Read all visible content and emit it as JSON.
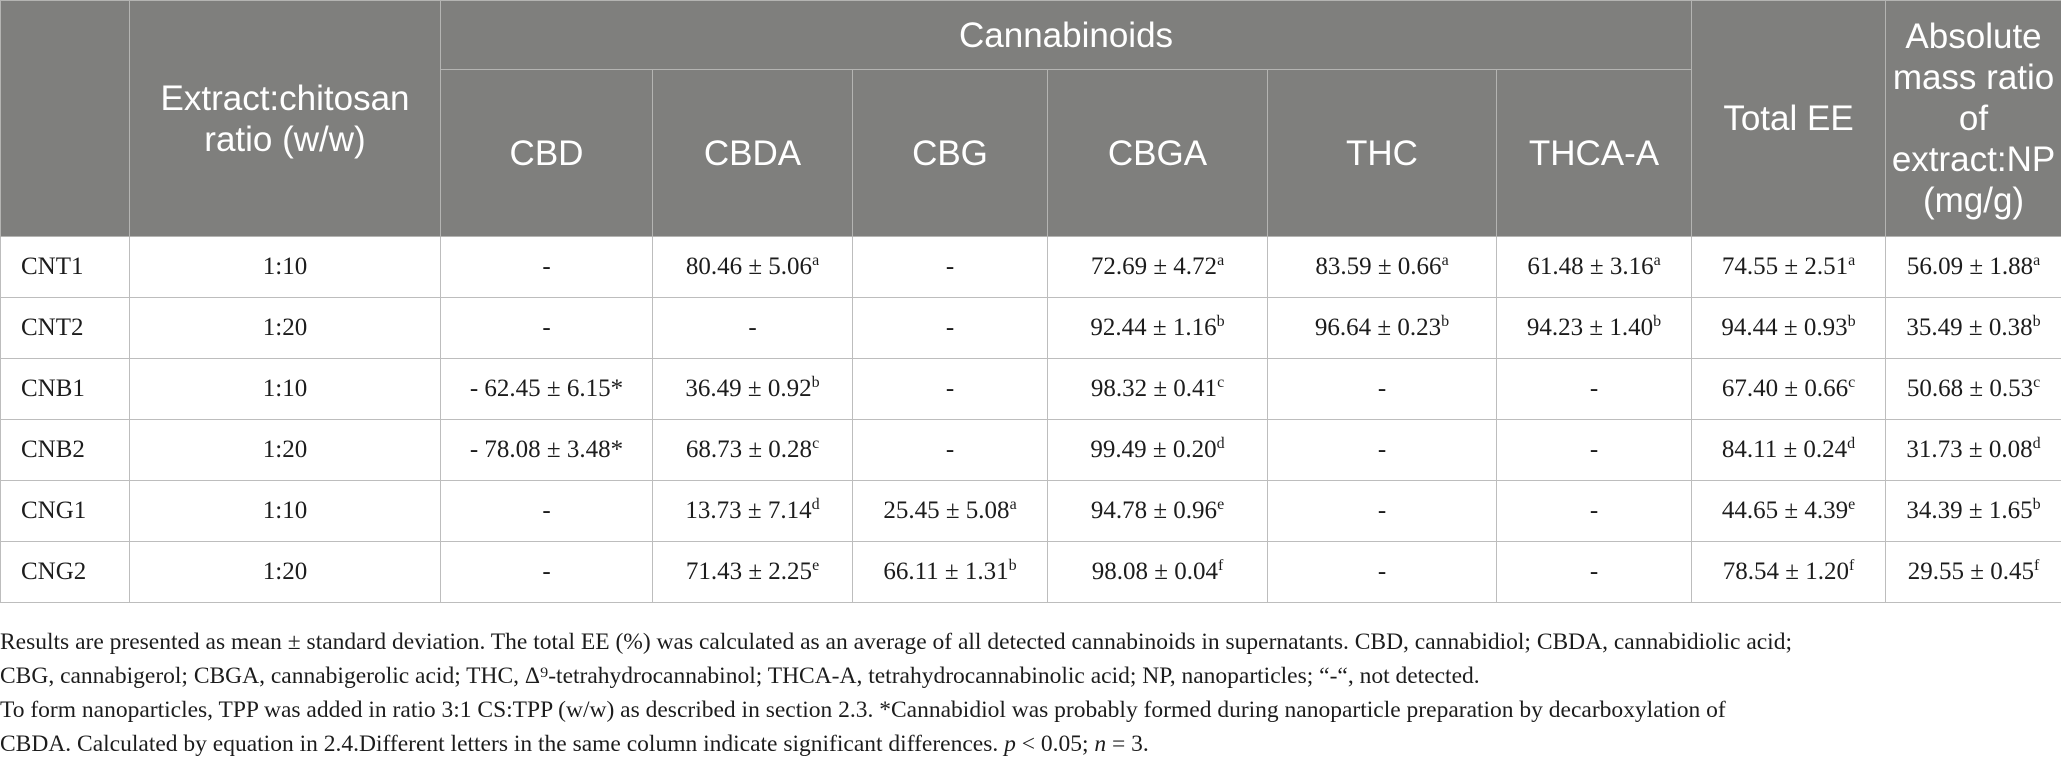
{
  "table": {
    "group_header": "Cannabinoids",
    "headers": {
      "blank": "",
      "ratio": "Extract:chitosan ratio (w/w)",
      "cannabinoids": [
        "CBD",
        "CBDA",
        "CBG",
        "CBGA",
        "THC",
        "THCA-A"
      ],
      "total": "Total EE",
      "absolute": "Absolute mass ratio of extract:NP (mg/g)"
    },
    "rows": [
      {
        "name": "CNT1",
        "ratio": "1:10",
        "cells": [
          {
            "v": "-",
            "s": ""
          },
          {
            "v": "80.46 ± 5.06",
            "s": "a"
          },
          {
            "v": "-",
            "s": ""
          },
          {
            "v": "72.69 ± 4.72",
            "s": "a"
          },
          {
            "v": "83.59 ± 0.66",
            "s": "a"
          },
          {
            "v": "61.48 ± 3.16",
            "s": "a"
          },
          {
            "v": "74.55 ± 2.51",
            "s": "a"
          },
          {
            "v": "56.09 ± 1.88",
            "s": "a"
          }
        ]
      },
      {
        "name": "CNT2",
        "ratio": "1:20",
        "cells": [
          {
            "v": "-",
            "s": ""
          },
          {
            "v": "-",
            "s": ""
          },
          {
            "v": "-",
            "s": ""
          },
          {
            "v": "92.44 ± 1.16",
            "s": "b"
          },
          {
            "v": "96.64 ± 0.23",
            "s": "b"
          },
          {
            "v": "94.23 ± 1.40",
            "s": "b"
          },
          {
            "v": "94.44 ± 0.93",
            "s": "b"
          },
          {
            "v": "35.49 ± 0.38",
            "s": "b"
          }
        ]
      },
      {
        "name": "CNB1",
        "ratio": "1:10",
        "cells": [
          {
            "v": "- 62.45 ± 6.15*",
            "s": ""
          },
          {
            "v": "36.49 ± 0.92",
            "s": "b"
          },
          {
            "v": "-",
            "s": ""
          },
          {
            "v": "98.32 ± 0.41",
            "s": "c"
          },
          {
            "v": "-",
            "s": ""
          },
          {
            "v": "-",
            "s": ""
          },
          {
            "v": "67.40 ± 0.66",
            "s": "c"
          },
          {
            "v": "50.68 ± 0.53",
            "s": "c"
          }
        ]
      },
      {
        "name": "CNB2",
        "ratio": "1:20",
        "cells": [
          {
            "v": "- 78.08 ± 3.48*",
            "s": ""
          },
          {
            "v": "68.73 ± 0.28",
            "s": "c"
          },
          {
            "v": "-",
            "s": ""
          },
          {
            "v": "99.49 ± 0.20",
            "s": "d"
          },
          {
            "v": "-",
            "s": ""
          },
          {
            "v": "-",
            "s": ""
          },
          {
            "v": "84.11 ± 0.24",
            "s": "d"
          },
          {
            "v": "31.73 ± 0.08",
            "s": "d"
          }
        ]
      },
      {
        "name": "CNG1",
        "ratio": "1:10",
        "cells": [
          {
            "v": "-",
            "s": ""
          },
          {
            "v": "13.73 ± 7.14",
            "s": "d"
          },
          {
            "v": "25.45 ± 5.08",
            "s": "a"
          },
          {
            "v": "94.78 ± 0.96",
            "s": "e"
          },
          {
            "v": "-",
            "s": ""
          },
          {
            "v": "-",
            "s": ""
          },
          {
            "v": "44.65 ± 4.39",
            "s": "e"
          },
          {
            "v": "34.39 ± 1.65",
            "s": "b"
          }
        ]
      },
      {
        "name": "CNG2",
        "ratio": "1:20",
        "cells": [
          {
            "v": "-",
            "s": ""
          },
          {
            "v": "71.43 ± 2.25",
            "s": "e"
          },
          {
            "v": "66.11 ± 1.31",
            "s": "b"
          },
          {
            "v": "98.08 ± 0.04",
            "s": "f"
          },
          {
            "v": "-",
            "s": ""
          },
          {
            "v": "-",
            "s": ""
          },
          {
            "v": "78.54 ± 1.20",
            "s": "f"
          },
          {
            "v": "29.55 ± 0.45",
            "s": "f"
          }
        ]
      }
    ]
  },
  "notes": {
    "line1": "Results are presented as mean ± standard deviation. The total EE (%) was calculated as an average of all detected cannabinoids in supernatants. CBD, cannabidiol; CBDA, cannabidiolic acid;",
    "line2": "CBG, cannabigerol; CBGA, cannabigerolic acid; THC, Δ⁹-tetrahydrocannabinol; THCA-A, tetrahydrocannabinolic acid; NP, nanoparticles; “-“, not detected.",
    "line3": "To form nanoparticles, TPP was added in ratio 3:1 CS:TPP (w/w) as described in section 2.3. *Cannabidiol was probably formed during nanoparticle preparation by decarboxylation of",
    "line4_a": "CBDA. Calculated by equation in 2.4.Different letters in the same column indicate significant differences. ",
    "line4_p": "p",
    "line4_b": " < 0.05; ",
    "line4_n": "n",
    "line4_c": " = 3."
  }
}
